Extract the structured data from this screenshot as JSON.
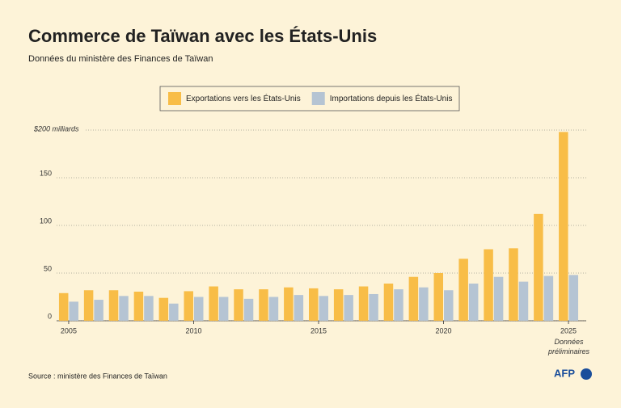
{
  "chart_data": {
    "type": "bar",
    "title": "Commerce de Taïwan avec les États-Unis",
    "subtitle": "Données du ministère des Finances de Taïwan",
    "x": [
      2005,
      2006,
      2007,
      2008,
      2009,
      2010,
      2011,
      2012,
      2013,
      2014,
      2015,
      2016,
      2017,
      2018,
      2019,
      2020,
      2021,
      2022,
      2023,
      2024,
      2025
    ],
    "series": [
      {
        "name": "Exportations vers les États-Unis",
        "color": "#f8bd47",
        "values": [
          29,
          32,
          32,
          30.5,
          24,
          31,
          36,
          33,
          33,
          35,
          34,
          33,
          36,
          39,
          46,
          50,
          65,
          75,
          76,
          112,
          198
        ]
      },
      {
        "name": "Importations depuis les États-Unis",
        "color": "#b5c4d3",
        "values": [
          20,
          22,
          26,
          26,
          18,
          25,
          25,
          23,
          25,
          27,
          26,
          27,
          28,
          33,
          35,
          32,
          39,
          46,
          41,
          47,
          48
        ]
      }
    ],
    "xlim": [
      2004.5,
      2025.5
    ],
    "xticks": [
      2005,
      2010,
      2015,
      2020,
      2025
    ],
    "ylim": [
      0,
      200
    ],
    "yticks": [
      0,
      50,
      100,
      150,
      {
        "value": 200,
        "label": "$200 milliards"
      }
    ],
    "grid": true,
    "annotation": "Données préliminaires",
    "source": "Source : ministère des Finances de Taïwan",
    "logo": "AFP"
  }
}
